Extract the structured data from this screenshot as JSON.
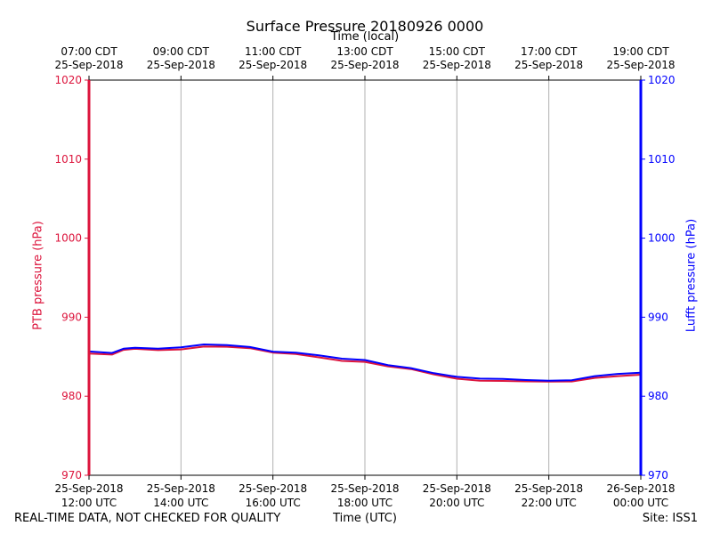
{
  "chart_data": {
    "type": "line",
    "title": "Surface Pressure 20180926 0000",
    "top_xlabel": "Time (local)",
    "xlabel": "Time (UTC)",
    "ylabel_left": "PTB pressure (hPa)",
    "ylabel_right": "Lufft pressure (hPa)",
    "ylim": [
      970,
      1020
    ],
    "yticks": [
      970,
      980,
      990,
      1000,
      1010,
      1020
    ],
    "xlim_hours": [
      0,
      12
    ],
    "grid": "vertical",
    "bottom_ticks": [
      {
        "hour": 0,
        "line1": "25-Sep-2018",
        "line2": "12:00 UTC"
      },
      {
        "hour": 2,
        "line1": "25-Sep-2018",
        "line2": "14:00 UTC"
      },
      {
        "hour": 4,
        "line1": "25-Sep-2018",
        "line2": "16:00 UTC"
      },
      {
        "hour": 6,
        "line1": "25-Sep-2018",
        "line2": "18:00 UTC"
      },
      {
        "hour": 8,
        "line1": "25-Sep-2018",
        "line2": "20:00 UTC"
      },
      {
        "hour": 10,
        "line1": "25-Sep-2018",
        "line2": "22:00 UTC"
      },
      {
        "hour": 12,
        "line1": "26-Sep-2018",
        "line2": "00:00 UTC"
      }
    ],
    "top_ticks": [
      {
        "hour": 0,
        "line1": "07:00 CDT",
        "line2": "25-Sep-2018"
      },
      {
        "hour": 2,
        "line1": "09:00 CDT",
        "line2": "25-Sep-2018"
      },
      {
        "hour": 4,
        "line1": "11:00 CDT",
        "line2": "25-Sep-2018"
      },
      {
        "hour": 6,
        "line1": "13:00 CDT",
        "line2": "25-Sep-2018"
      },
      {
        "hour": 8,
        "line1": "15:00 CDT",
        "line2": "25-Sep-2018"
      },
      {
        "hour": 10,
        "line1": "17:00 CDT",
        "line2": "25-Sep-2018"
      },
      {
        "hour": 12,
        "line1": "19:00 CDT",
        "line2": "25-Sep-2018"
      }
    ],
    "series": [
      {
        "name": "PTB pressure",
        "color": "#dc143c",
        "x": [
          0,
          0.5,
          0.75,
          1,
          1.5,
          2,
          2.5,
          3,
          3.5,
          4,
          4.5,
          5,
          5.5,
          6,
          6.5,
          7,
          7.5,
          8,
          8.5,
          9,
          9.5,
          10,
          10.5,
          11,
          11.5,
          12
        ],
        "y": [
          985.4,
          985.2,
          985.8,
          986.0,
          985.9,
          986.0,
          986.3,
          986.2,
          986.0,
          985.5,
          985.4,
          985.0,
          984.5,
          984.3,
          983.7,
          983.4,
          982.8,
          982.3,
          982.0,
          981.9,
          981.8,
          981.8,
          981.9,
          982.4,
          982.6,
          982.7
        ]
      },
      {
        "name": "Lufft pressure",
        "color": "#0000ff",
        "x": [
          0,
          0.5,
          0.75,
          1,
          1.5,
          2,
          2.5,
          3,
          3.5,
          4,
          4.5,
          5,
          5.5,
          6,
          6.5,
          7,
          7.5,
          8,
          8.5,
          9,
          9.5,
          10,
          10.5,
          11,
          11.5,
          12
        ],
        "y": [
          985.6,
          985.4,
          986.0,
          986.2,
          986.1,
          986.2,
          986.5,
          986.4,
          986.2,
          985.7,
          985.6,
          985.2,
          984.7,
          984.5,
          983.9,
          983.6,
          983.0,
          982.5,
          982.2,
          982.1,
          982.0,
          982.0,
          982.1,
          982.6,
          982.8,
          982.9
        ]
      }
    ]
  },
  "footer": {
    "quality_note": "REAL-TIME DATA, NOT CHECKED FOR QUALITY",
    "site": "Site: ISS1"
  }
}
